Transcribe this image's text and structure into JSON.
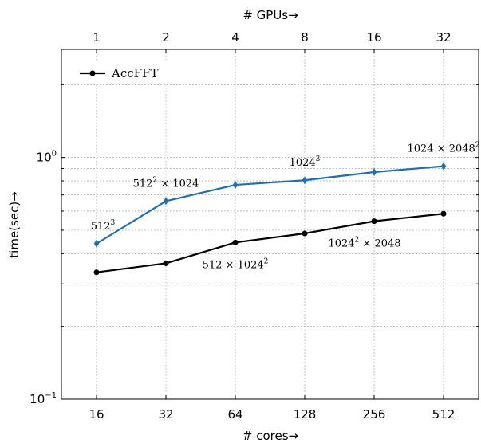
{
  "chart_data": {
    "type": "line",
    "xlabel": "# cores→",
    "ylabel": "time(sec)→",
    "top_xlabel": "# GPUs→",
    "x_ticks": [
      "16",
      "32",
      "64",
      "128",
      "256",
      "512"
    ],
    "top_x_ticks": [
      "1",
      "2",
      "4",
      "8",
      "16",
      "32"
    ],
    "y_scale": "log",
    "ylim": [
      0.1,
      2.8
    ],
    "y_tick_labels": [
      {
        "value": 1,
        "base": "10",
        "exp": "0"
      },
      {
        "value": 0.1,
        "base": "10",
        "exp": "−1"
      }
    ],
    "grid": true,
    "legend_position": "top-left",
    "series": [
      {
        "name": "AccFFT",
        "color": "#000000",
        "marker": "circle",
        "values": [
          0.335,
          0.365,
          0.445,
          0.485,
          0.545,
          0.585
        ]
      },
      {
        "name": "",
        "color": "#1f6fb0",
        "marker": "diamond",
        "values": [
          0.44,
          0.66,
          0.77,
          0.805,
          0.87,
          0.92
        ]
      }
    ],
    "annotations": [
      {
        "base": "512",
        "sup": "3",
        "rest": "",
        "anchor": {
          "series": 1,
          "index": 0
        },
        "placement": "above"
      },
      {
        "base": "512",
        "sup": "2",
        "rest": " × 1024",
        "anchor": {
          "series": 1,
          "index": 1
        },
        "placement": "above"
      },
      {
        "base": "1024",
        "sup": "3",
        "rest": "",
        "anchor": {
          "series": 1,
          "index": 3
        },
        "placement": "above"
      },
      {
        "base": "1024 × 2048",
        "sup": "2",
        "rest": "",
        "anchor": {
          "series": 1,
          "index": 5
        },
        "placement": "above"
      },
      {
        "base": "512 × 1024",
        "sup": "2",
        "rest": "",
        "anchor": {
          "series": 0,
          "index": 2
        },
        "placement": "below"
      },
      {
        "base": "1024",
        "sup": "2",
        "rest": " × 2048",
        "anchor": {
          "series": 0,
          "index": 4
        },
        "placement": "below"
      }
    ]
  }
}
